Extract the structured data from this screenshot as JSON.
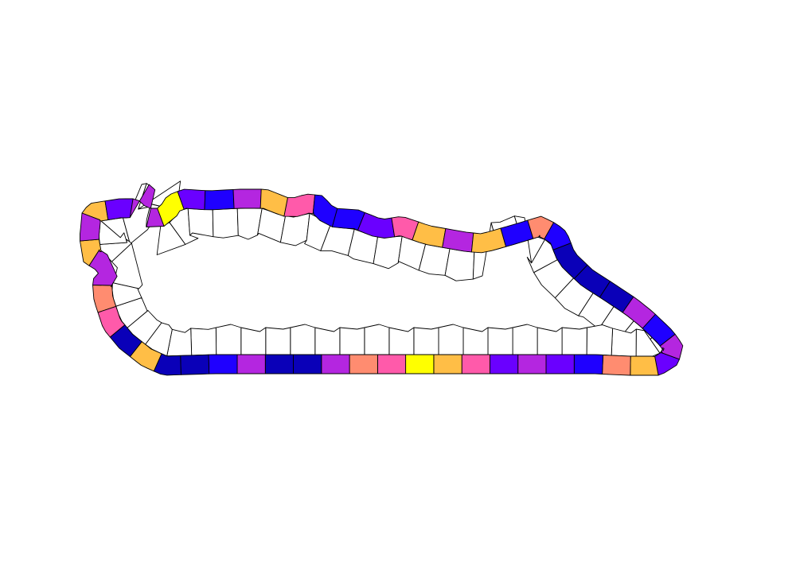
{
  "palette": {
    "gold": "#FFBE46",
    "violet": "#6A00FF",
    "purple": "#B426E0",
    "yellow": "#FFFF00",
    "blue": "#1F00FF",
    "navy": "#0A00B8",
    "salmon": "#FF8C70",
    "pink": "#FF5AAA",
    "white": "#FFFFFF",
    "stroke": "#000000"
  },
  "outer_ring": [
    "gold",
    "violet",
    "purple",
    "yellow",
    "violet",
    "blue",
    "purple",
    "gold",
    "pink",
    "blue",
    "blue",
    "violet",
    "pink",
    "gold",
    "purple",
    "gold",
    "blue",
    "salmon",
    "blue",
    "navy",
    "navy",
    "navy",
    "purple",
    "blue",
    "purple",
    "violet",
    "gold",
    "salmon",
    "blue",
    "violet",
    "purple",
    "violet",
    "pink",
    "gold",
    "yellow",
    "pink",
    "salmon",
    "purple",
    "navy",
    "navy",
    "purple",
    "blue",
    "navy",
    "navy",
    "gold",
    "navy",
    "pink",
    "salmon",
    "purple",
    "gold",
    "purple"
  ],
  "inner_ring": {
    "top_count": 34,
    "bottom_count": 22
  }
}
